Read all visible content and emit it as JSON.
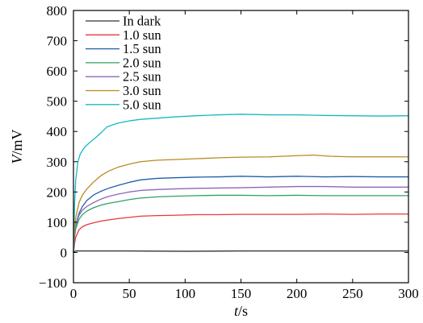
{
  "chart_data": {
    "type": "line",
    "title": "",
    "xlabel_var": "t",
    "xlabel_unit": "/s",
    "ylabel_var": "V",
    "ylabel_unit": "/mV",
    "xlim": [
      0,
      300
    ],
    "ylim": [
      -100,
      800
    ],
    "x_ticks": [
      0,
      50,
      100,
      150,
      200,
      250,
      300
    ],
    "y_ticks": [
      -100,
      0,
      100,
      200,
      300,
      400,
      500,
      600,
      700,
      800
    ],
    "x_tick_labels": [
      "0",
      "50",
      "100",
      "150",
      "200",
      "250",
      "300"
    ],
    "y_tick_labels": [
      "−100",
      "0",
      "100",
      "200",
      "300",
      "400",
      "500",
      "600",
      "700",
      "800"
    ],
    "grid": false,
    "legend_position": "top-left",
    "series": [
      {
        "name": "In dark",
        "color": "#333333",
        "x": [
          0,
          1,
          2,
          5,
          10,
          50,
          100,
          150,
          200,
          250,
          300
        ],
        "y": [
          0,
          3,
          5,
          5,
          5,
          5,
          4,
          5,
          5,
          5,
          5
        ]
      },
      {
        "name": "1.0 sun",
        "color": "#e8383d",
        "x": [
          0,
          1,
          2,
          5,
          8,
          12,
          18,
          25,
          32,
          40,
          50,
          60,
          75,
          90,
          110,
          130,
          150,
          175,
          200,
          225,
          250,
          275,
          300
        ],
        "y": [
          0,
          30,
          50,
          75,
          85,
          92,
          98,
          104,
          108,
          112,
          116,
          120,
          122,
          123,
          125,
          125,
          126,
          126,
          126,
          127,
          126,
          127,
          127
        ]
      },
      {
        "name": "1.5 sun",
        "color": "#1f5fa8",
        "x": [
          0,
          1,
          2,
          5,
          8,
          12,
          18,
          25,
          32,
          40,
          50,
          60,
          75,
          90,
          110,
          130,
          150,
          175,
          200,
          225,
          250,
          275,
          300
        ],
        "y": [
          0,
          55,
          90,
          130,
          152,
          172,
          190,
          203,
          213,
          222,
          232,
          240,
          245,
          247,
          249,
          250,
          252,
          250,
          252,
          250,
          251,
          250,
          250
        ]
      },
      {
        "name": "2.0 sun",
        "color": "#2fa267",
        "x": [
          0,
          1,
          2,
          5,
          8,
          12,
          18,
          25,
          32,
          40,
          50,
          60,
          75,
          90,
          110,
          130,
          150,
          175,
          200,
          225,
          250,
          275,
          300
        ],
        "y": [
          0,
          50,
          78,
          110,
          125,
          137,
          148,
          157,
          163,
          168,
          175,
          180,
          184,
          186,
          188,
          189,
          189,
          188,
          189,
          188,
          188,
          188,
          188
        ]
      },
      {
        "name": "2.5 sun",
        "color": "#8e66b8",
        "x": [
          0,
          1,
          2,
          5,
          8,
          12,
          18,
          25,
          32,
          40,
          50,
          60,
          75,
          90,
          110,
          130,
          150,
          175,
          200,
          225,
          250,
          275,
          300
        ],
        "y": [
          0,
          55,
          90,
          123,
          140,
          152,
          165,
          177,
          186,
          193,
          200,
          205,
          208,
          210,
          212,
          213,
          214,
          216,
          218,
          218,
          216,
          216,
          216
        ]
      },
      {
        "name": "3.0 sun",
        "color": "#b98a1e",
        "x": [
          0,
          1,
          2,
          5,
          8,
          12,
          18,
          25,
          32,
          40,
          50,
          60,
          75,
          90,
          110,
          130,
          150,
          175,
          200,
          215,
          230,
          250,
          275,
          300
        ],
        "y": [
          0,
          70,
          115,
          165,
          190,
          210,
          233,
          255,
          270,
          282,
          292,
          300,
          305,
          307,
          310,
          313,
          315,
          316,
          320,
          322,
          318,
          316,
          316,
          316
        ]
      },
      {
        "name": "5.0 sun",
        "color": "#1ab8c4",
        "x": [
          0,
          1,
          2,
          4,
          6,
          10,
          15,
          20,
          25,
          30,
          35,
          40,
          50,
          60,
          75,
          90,
          110,
          130,
          150,
          175,
          200,
          225,
          250,
          275,
          300
        ],
        "y": [
          0,
          160,
          240,
          300,
          325,
          348,
          365,
          380,
          397,
          415,
          422,
          428,
          435,
          440,
          444,
          448,
          452,
          455,
          457,
          455,
          455,
          453,
          452,
          451,
          452
        ]
      }
    ]
  }
}
